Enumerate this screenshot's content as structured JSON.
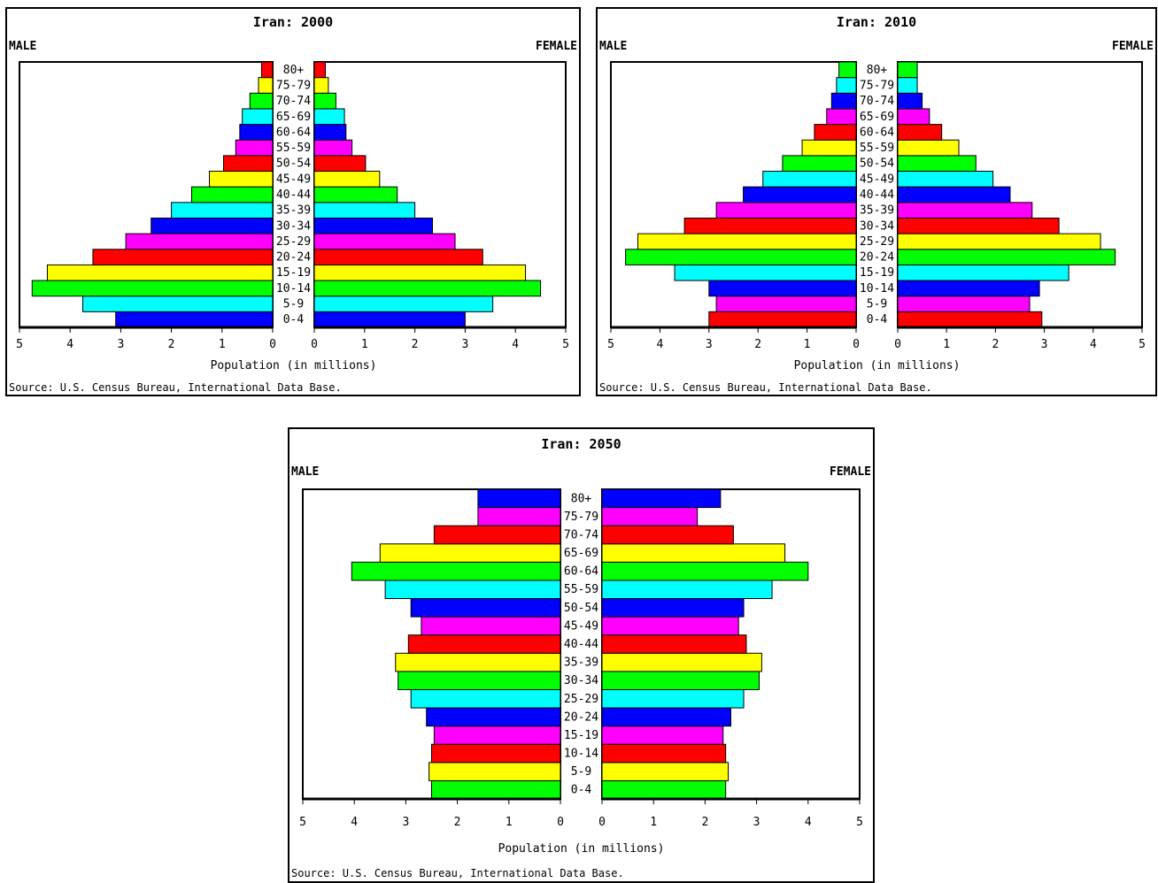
{
  "charts": [
    {
      "title": "Iran: 2000",
      "male_label": "MALE",
      "female_label": "FEMALE",
      "xlabel": "Population (in millions)",
      "source": "Source: U.S. Census Bureau, International Data Base."
    },
    {
      "title": "Iran: 2010",
      "male_label": "MALE",
      "female_label": "FEMALE",
      "xlabel": "Population (in millions)",
      "source": "Source: U.S. Census Bureau, International Data Base."
    },
    {
      "title": "Iran: 2050",
      "male_label": "MALE",
      "female_label": "FEMALE",
      "xlabel": "Population (in millions)",
      "source": "Source: U.S. Census Bureau, International Data Base."
    }
  ],
  "chart_data": [
    {
      "type": "bar",
      "orientation": "horizontal",
      "subtype": "population-pyramid",
      "title": "Iran: 2000",
      "xlabel": "Population (in millions)",
      "xlim": [
        0,
        5
      ],
      "x_ticks": [
        "5",
        "4",
        "3",
        "2",
        "1",
        "0"
      ],
      "categories": [
        "0-4",
        "5-9",
        "10-14",
        "15-19",
        "20-24",
        "25-29",
        "30-34",
        "35-39",
        "40-44",
        "45-49",
        "50-54",
        "55-59",
        "60-64",
        "65-69",
        "70-74",
        "75-79",
        "80+"
      ],
      "series": [
        {
          "name": "MALE",
          "values": [
            3.1,
            3.75,
            4.75,
            4.45,
            3.55,
            2.9,
            2.4,
            2.0,
            1.6,
            1.25,
            0.97,
            0.73,
            0.65,
            0.6,
            0.45,
            0.28,
            0.22
          ]
        },
        {
          "name": "FEMALE",
          "values": [
            3.0,
            3.55,
            4.5,
            4.2,
            3.35,
            2.8,
            2.35,
            2.0,
            1.65,
            1.3,
            1.02,
            0.75,
            0.63,
            0.6,
            0.43,
            0.28,
            0.22
          ]
        }
      ],
      "colors": [
        "#0000ff",
        "#00ffff",
        "#00ff00",
        "#ffff00",
        "#ff0000",
        "#ff00ff",
        "#0000ff",
        "#00ffff",
        "#00ff00",
        "#ffff00",
        "#ff0000",
        "#ff00ff",
        "#0000ff",
        "#00ffff",
        "#00ff00",
        "#ffff00",
        "#ff0000"
      ]
    },
    {
      "type": "bar",
      "orientation": "horizontal",
      "subtype": "population-pyramid",
      "title": "Iran: 2010",
      "xlabel": "Population (in millions)",
      "xlim": [
        0,
        5
      ],
      "x_ticks": [
        "5",
        "4",
        "3",
        "2",
        "1",
        "0"
      ],
      "categories": [
        "0-4",
        "5-9",
        "10-14",
        "15-19",
        "20-24",
        "25-29",
        "30-34",
        "35-39",
        "40-44",
        "45-49",
        "50-54",
        "55-59",
        "60-64",
        "65-69",
        "70-74",
        "75-79",
        "80+"
      ],
      "series": [
        {
          "name": "MALE",
          "values": [
            3.0,
            2.85,
            3.0,
            3.7,
            4.7,
            4.45,
            3.5,
            2.85,
            2.3,
            1.9,
            1.5,
            1.1,
            0.85,
            0.6,
            0.5,
            0.4,
            0.35
          ]
        },
        {
          "name": "FEMALE",
          "values": [
            2.95,
            2.7,
            2.9,
            3.5,
            4.45,
            4.15,
            3.3,
            2.75,
            2.3,
            1.95,
            1.6,
            1.25,
            0.9,
            0.65,
            0.5,
            0.4,
            0.4
          ]
        }
      ],
      "colors": [
        "#ff0000",
        "#ff00ff",
        "#0000ff",
        "#00ffff",
        "#00ff00",
        "#ffff00",
        "#ff0000",
        "#ff00ff",
        "#0000ff",
        "#00ffff",
        "#00ff00",
        "#ffff00",
        "#ff0000",
        "#ff00ff",
        "#0000ff",
        "#00ffff",
        "#00ff00"
      ]
    },
    {
      "type": "bar",
      "orientation": "horizontal",
      "subtype": "population-pyramid",
      "title": "Iran: 2050",
      "xlabel": "Population (in millions)",
      "xlim": [
        0,
        5
      ],
      "x_ticks": [
        "5",
        "4",
        "3",
        "2",
        "1",
        "0"
      ],
      "categories": [
        "0-4",
        "5-9",
        "10-14",
        "15-19",
        "20-24",
        "25-29",
        "30-34",
        "35-39",
        "40-44",
        "45-49",
        "50-54",
        "55-59",
        "60-64",
        "65-69",
        "70-74",
        "75-79",
        "80+"
      ],
      "series": [
        {
          "name": "MALE",
          "values": [
            2.5,
            2.55,
            2.5,
            2.45,
            2.6,
            2.9,
            3.15,
            3.2,
            2.95,
            2.7,
            2.9,
            3.4,
            4.05,
            3.5,
            2.45,
            1.6,
            1.6
          ]
        },
        {
          "name": "FEMALE",
          "values": [
            2.4,
            2.45,
            2.4,
            2.35,
            2.5,
            2.75,
            3.05,
            3.1,
            2.8,
            2.65,
            2.75,
            3.3,
            4.0,
            3.55,
            2.55,
            1.85,
            2.3
          ]
        }
      ],
      "colors": [
        "#00ff00",
        "#ffff00",
        "#ff0000",
        "#ff00ff",
        "#0000ff",
        "#00ffff",
        "#00ff00",
        "#ffff00",
        "#ff0000",
        "#ff00ff",
        "#0000ff",
        "#00ffff",
        "#00ff00",
        "#ffff00",
        "#ff0000",
        "#ff00ff",
        "#0000ff"
      ]
    }
  ]
}
